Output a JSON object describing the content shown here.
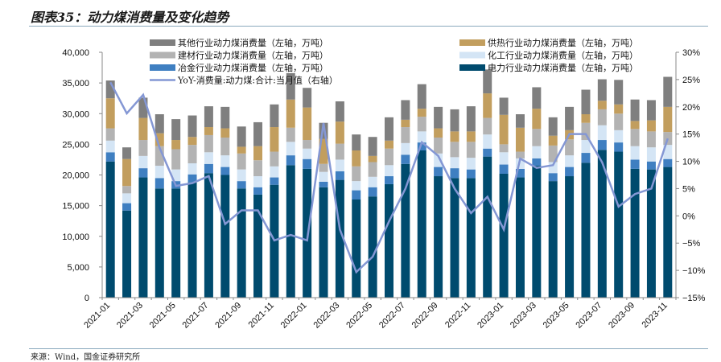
{
  "title": "图表35：动力煤消费量及变化趋势",
  "source": "来源：Wind，国金证券研究所",
  "chart_data": {
    "type": "bar",
    "stacked": true,
    "title": "图表35：动力煤消费量及变化趋势",
    "categories": [
      "2021-01",
      "2021-02",
      "2021-03",
      "2021-04",
      "2021-05",
      "2021-06",
      "2021-07",
      "2021-08",
      "2021-09",
      "2021-10",
      "2021-11",
      "2021-12",
      "2022-01",
      "2022-02",
      "2022-03",
      "2022-04",
      "2022-05",
      "2022-06",
      "2022-07",
      "2022-08",
      "2022-09",
      "2022-10",
      "2022-11",
      "2022-12",
      "2023-01",
      "2023-02",
      "2023-03",
      "2023-04",
      "2023-05",
      "2023-06",
      "2023-07",
      "2023-08",
      "2023-09",
      "2023-10",
      "2023-11"
    ],
    "xtick_labels": [
      "2021-01",
      "2021-03",
      "2021-05",
      "2021-07",
      "2021-09",
      "2021-11",
      "2022-01",
      "2022-03",
      "2022-05",
      "2022-07",
      "2022-09",
      "2022-11",
      "2023-01",
      "2023-03",
      "2023-05",
      "2023-07",
      "2023-09",
      "2023-11"
    ],
    "series": [
      {
        "name": "电力行业动力煤消费量（左轴，万吨）",
        "color": "#004b6e",
        "axis": "left",
        "values": [
          22200,
          14200,
          19600,
          17800,
          17800,
          18800,
          20300,
          20000,
          17800,
          16800,
          18400,
          21600,
          21000,
          18000,
          19200,
          16000,
          16500,
          18500,
          21800,
          24000,
          19800,
          19500,
          19500,
          23000,
          20200,
          19600,
          21500,
          19000,
          19800,
          22000,
          24100,
          23800,
          21000,
          20900,
          21300
        ]
      },
      {
        "name": "冶金行业动力煤消费量（左轴，万吨）",
        "color": "#3f7fc1",
        "axis": "left",
        "values": [
          1500,
          1200,
          1500,
          1700,
          1200,
          1300,
          1500,
          1300,
          1200,
          1200,
          1200,
          1600,
          1600,
          900,
          1400,
          1500,
          1500,
          1300,
          1500,
          1300,
          1500,
          1600,
          1400,
          1300,
          1500,
          1400,
          1200,
          1300,
          1500,
          1600,
          1600,
          1500,
          1500,
          1300,
          1300
        ]
      },
      {
        "name": "化工行业动力煤消费量（左轴，万吨）",
        "color": "#d4e5f5",
        "axis": "left",
        "values": [
          1900,
          1600,
          2000,
          2000,
          1900,
          1800,
          1900,
          1900,
          1900,
          1800,
          1800,
          2200,
          1700,
          1600,
          1900,
          1500,
          1700,
          1800,
          1900,
          1800,
          2200,
          1800,
          1900,
          2300,
          2000,
          1700,
          2000,
          1800,
          1900,
          2100,
          2400,
          2000,
          2200,
          2300,
          2300
        ]
      },
      {
        "name": "建材行业动力煤消费量（左轴，万吨）",
        "color": "#b3b3b3",
        "axis": "left",
        "values": [
          2000,
          1200,
          2600,
          3200,
          3300,
          3000,
          2800,
          2900,
          2600,
          2600,
          2400,
          2300,
          1400,
          1300,
          2600,
          2400,
          2400,
          2700,
          2600,
          2400,
          2600,
          2500,
          2600,
          2700,
          1300,
          1100,
          2800,
          2700,
          2600,
          2800,
          2600,
          2700,
          2800,
          2600,
          2100
        ]
      },
      {
        "name": "供热行业动力煤消费量（左轴，万吨）",
        "color": "#c29e5e",
        "axis": "left",
        "values": [
          4900,
          4400,
          3600,
          2100,
          1500,
          1300,
          1300,
          1500,
          1100,
          2300,
          4000,
          4600,
          5300,
          4100,
          3600,
          2600,
          1000,
          1300,
          1200,
          1300,
          1500,
          1700,
          1700,
          4000,
          4800,
          3900,
          3300,
          1600,
          1500,
          1400,
          1400,
          1500,
          1300,
          1800,
          4100
        ]
      },
      {
        "name": "其他行业动力煤消费量（左轴，万吨）",
        "color": "#7f7f7f",
        "axis": "left",
        "values": [
          2900,
          1900,
          3300,
          3100,
          3400,
          3500,
          3400,
          3500,
          3300,
          3900,
          3700,
          4300,
          3200,
          2600,
          3300,
          2600,
          3100,
          3800,
          3200,
          4000,
          3500,
          3600,
          4100,
          3900,
          2800,
          2200,
          3500,
          3000,
          3800,
          4000,
          3500,
          4000,
          3500,
          3300,
          4900
        ]
      },
      {
        "name": "YoY-消费量:动力煤:合计:当月值（右轴）",
        "type": "line",
        "color": "#8497d4",
        "axis": "right",
        "values": [
          24.5,
          18.8,
          22.2,
          12.5,
          5.5,
          6.0,
          7.3,
          -1.5,
          1.0,
          1.0,
          -4.5,
          -3.5,
          -4.5,
          17.0,
          -2.5,
          -10.3,
          -7.5,
          -1.0,
          5.0,
          13.5,
          11.0,
          5.0,
          0.5,
          3.5,
          -2.5,
          10.5,
          8.8,
          9.3,
          15.0,
          15.0,
          9.8,
          1.7,
          4.0,
          5.0,
          14.2
        ]
      }
    ],
    "left_axis": {
      "min": 0,
      "max": 40000,
      "step": 5000,
      "tick_labels": [
        "0",
        "5,000",
        "10,000",
        "15,000",
        "20,000",
        "25,000",
        "30,000",
        "35,000",
        "40,000"
      ]
    },
    "right_axis": {
      "min": -15,
      "max": 30,
      "step": 5,
      "tick_labels": [
        "-15%",
        "-10%",
        "-5%",
        "0%",
        "5%",
        "10%",
        "15%",
        "20%",
        "25%",
        "30%"
      ]
    },
    "legend_placement": "top",
    "legend_order": [
      5,
      4,
      3,
      2,
      6,
      0
    ],
    "grid": false,
    "xlabel": "",
    "ylabel": ""
  }
}
